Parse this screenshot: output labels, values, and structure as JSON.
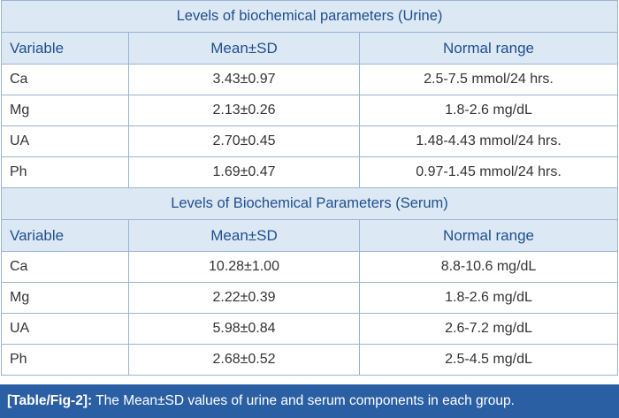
{
  "urine": {
    "title": "Levels of biochemical parameters (Urine)",
    "headers": [
      "Variable",
      "Mean±SD",
      "Normal range"
    ],
    "rows": [
      [
        "Ca",
        "3.43±0.97",
        "2.5-7.5 mmol/24 hrs."
      ],
      [
        "Mg",
        "2.13±0.26",
        "1.8-2.6 mg/dL"
      ],
      [
        "UA",
        "2.70±0.45",
        "1.48-4.43 mmol/24 hrs."
      ],
      [
        "Ph",
        "1.69±0.47",
        "0.97-1.45 mmol/24 hrs."
      ]
    ]
  },
  "serum": {
    "title": "Levels of Biochemical Parameters (Serum)",
    "headers": [
      "Variable",
      "Mean±SD",
      "Normal range"
    ],
    "rows": [
      [
        "Ca",
        "10.28±1.00",
        "8.8-10.6 mg/dL"
      ],
      [
        "Mg",
        "2.22±0.39",
        "1.8-2.6 mg/dL"
      ],
      [
        "UA",
        "5.98±0.84",
        "2.6-7.2 mg/dL"
      ],
      [
        "Ph",
        "2.68±0.52",
        "2.5-4.5 mg/dL"
      ]
    ]
  },
  "caption": {
    "label": "[Table/Fig-2]:",
    "text": " The Mean±SD values of urine and serum components in each group."
  },
  "colors": {
    "header_bg": "#dde8f5",
    "header_text": "#1e4f8d",
    "border": "#9bb3d2",
    "caption_bg": "#2b5fa3"
  }
}
